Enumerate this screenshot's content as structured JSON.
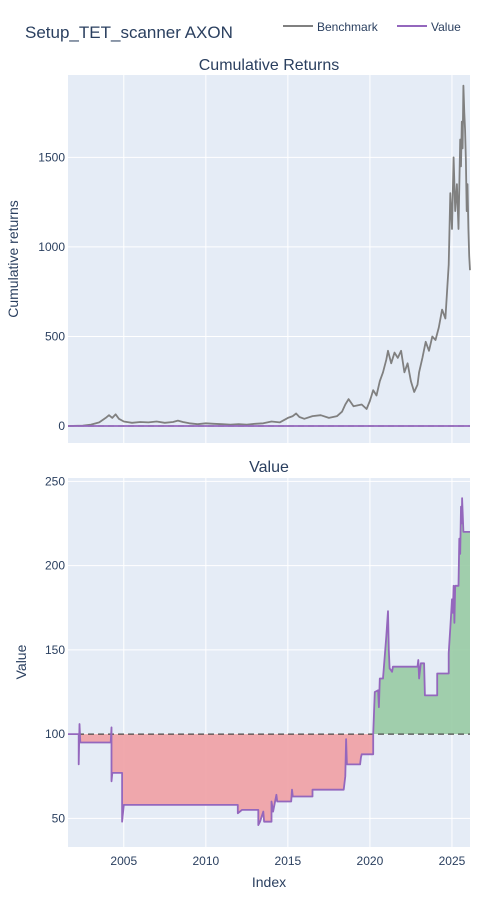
{
  "chart_data": [
    {
      "type": "line",
      "figure_title": "Setup_TET_scanner AXON",
      "title": "Cumulative Returns",
      "ylabel": "Cumulative returns",
      "xlabel": "",
      "x_range": [
        2001.6,
        2026.1
      ],
      "ylim": [
        -95,
        1960
      ],
      "yticks": [
        0,
        500,
        1000,
        1500
      ],
      "xticks": [
        2005,
        2010,
        2015,
        2020,
        2025
      ],
      "grid": true,
      "legend": {
        "position": "top-right",
        "entries": [
          "Benchmark",
          "Value"
        ]
      },
      "series": [
        {
          "name": "Benchmark",
          "color": "#808080",
          "points": [
            [
              2001.6,
              0
            ],
            [
              2002.5,
              2
            ],
            [
              2003.0,
              8
            ],
            [
              2003.5,
              20
            ],
            [
              2003.9,
              45
            ],
            [
              2004.1,
              60
            ],
            [
              2004.3,
              45
            ],
            [
              2004.5,
              65
            ],
            [
              2004.7,
              40
            ],
            [
              2005.0,
              25
            ],
            [
              2005.5,
              18
            ],
            [
              2006.0,
              22
            ],
            [
              2006.5,
              20
            ],
            [
              2007.0,
              25
            ],
            [
              2007.5,
              18
            ],
            [
              2008.0,
              22
            ],
            [
              2008.3,
              30
            ],
            [
              2008.6,
              22
            ],
            [
              2009.0,
              15
            ],
            [
              2009.5,
              10
            ],
            [
              2010.0,
              15
            ],
            [
              2010.5,
              12
            ],
            [
              2011.0,
              10
            ],
            [
              2011.5,
              8
            ],
            [
              2012.0,
              10
            ],
            [
              2012.5,
              8
            ],
            [
              2013.0,
              12
            ],
            [
              2013.5,
              15
            ],
            [
              2014.0,
              25
            ],
            [
              2014.5,
              20
            ],
            [
              2015.0,
              45
            ],
            [
              2015.3,
              55
            ],
            [
              2015.5,
              70
            ],
            [
              2015.7,
              50
            ],
            [
              2016.0,
              40
            ],
            [
              2016.5,
              55
            ],
            [
              2017.0,
              60
            ],
            [
              2017.5,
              45
            ],
            [
              2018.0,
              55
            ],
            [
              2018.3,
              80
            ],
            [
              2018.5,
              120
            ],
            [
              2018.7,
              150
            ],
            [
              2019.0,
              110
            ],
            [
              2019.5,
              120
            ],
            [
              2019.8,
              95
            ],
            [
              2020.0,
              140
            ],
            [
              2020.2,
              200
            ],
            [
              2020.4,
              170
            ],
            [
              2020.6,
              250
            ],
            [
              2020.8,
              300
            ],
            [
              2021.0,
              370
            ],
            [
              2021.1,
              420
            ],
            [
              2021.3,
              350
            ],
            [
              2021.5,
              410
            ],
            [
              2021.7,
              380
            ],
            [
              2021.9,
              420
            ],
            [
              2022.1,
              300
            ],
            [
              2022.3,
              350
            ],
            [
              2022.5,
              250
            ],
            [
              2022.7,
              190
            ],
            [
              2022.9,
              230
            ],
            [
              2023.0,
              300
            ],
            [
              2023.2,
              380
            ],
            [
              2023.4,
              470
            ],
            [
              2023.6,
              420
            ],
            [
              2023.8,
              500
            ],
            [
              2024.0,
              480
            ],
            [
              2024.2,
              550
            ],
            [
              2024.4,
              650
            ],
            [
              2024.6,
              600
            ],
            [
              2024.8,
              900
            ],
            [
              2024.9,
              1300
            ],
            [
              2025.0,
              1100
            ],
            [
              2025.1,
              1500
            ],
            [
              2025.2,
              1200
            ],
            [
              2025.3,
              1350
            ],
            [
              2025.4,
              1100
            ],
            [
              2025.5,
              1600
            ],
            [
              2025.55,
              1450
            ],
            [
              2025.6,
              1700
            ],
            [
              2025.65,
              1550
            ],
            [
              2025.7,
              1900
            ],
            [
              2025.75,
              1750
            ],
            [
              2025.8,
              1650
            ],
            [
              2025.85,
              1480
            ],
            [
              2025.9,
              1200
            ],
            [
              2025.95,
              1350
            ],
            [
              2026.0,
              1100
            ],
            [
              2026.05,
              950
            ],
            [
              2026.1,
              870
            ]
          ]
        },
        {
          "name": "Value",
          "color": "#9467bd",
          "points": [
            [
              2001.6,
              0
            ],
            [
              2026.1,
              0
            ]
          ]
        }
      ]
    },
    {
      "type": "line",
      "title": "Value",
      "ylabel": "Value",
      "xlabel": "Index",
      "x_range": [
        2001.6,
        2026.1
      ],
      "ylim": [
        33,
        252
      ],
      "yticks": [
        50,
        100,
        150,
        200,
        250
      ],
      "xticks": [
        2005,
        2010,
        2015,
        2020,
        2025
      ],
      "baseline": 100,
      "grid": true,
      "fill_colors": {
        "above": "#98cba4",
        "below": "#f0a0a4"
      },
      "series": [
        {
          "name": "Value",
          "color": "#9467bd",
          "points": [
            [
              2001.6,
              100
            ],
            [
              2002.25,
              100
            ],
            [
              2002.25,
              82
            ],
            [
              2002.3,
              106
            ],
            [
              2002.35,
              95
            ],
            [
              2004.2,
              95
            ],
            [
              2004.25,
              104
            ],
            [
              2004.25,
              72
            ],
            [
              2004.3,
              77
            ],
            [
              2004.9,
              77
            ],
            [
              2004.9,
              48
            ],
            [
              2005.0,
              58
            ],
            [
              2011.95,
              58
            ],
            [
              2011.95,
              53
            ],
            [
              2012.2,
              55
            ],
            [
              2013.2,
              55
            ],
            [
              2013.2,
              46
            ],
            [
              2013.3,
              48
            ],
            [
              2013.5,
              54
            ],
            [
              2013.55,
              48
            ],
            [
              2014.0,
              48
            ],
            [
              2014.0,
              60
            ],
            [
              2014.1,
              54
            ],
            [
              2014.3,
              64
            ],
            [
              2014.35,
              60
            ],
            [
              2015.2,
              60
            ],
            [
              2015.25,
              67
            ],
            [
              2015.3,
              63
            ],
            [
              2016.5,
              63
            ],
            [
              2016.5,
              67
            ],
            [
              2018.4,
              67
            ],
            [
              2018.5,
              75
            ],
            [
              2018.55,
              97
            ],
            [
              2018.6,
              82
            ],
            [
              2019.4,
              82
            ],
            [
              2019.45,
              86
            ],
            [
              2019.5,
              88
            ],
            [
              2020.2,
              88
            ],
            [
              2020.2,
              100
            ],
            [
              2020.3,
              125
            ],
            [
              2020.5,
              126
            ],
            [
              2020.55,
              116
            ],
            [
              2020.6,
              133
            ],
            [
              2020.8,
              133
            ],
            [
              2021.0,
              158
            ],
            [
              2021.1,
              173
            ],
            [
              2021.15,
              150
            ],
            [
              2021.2,
              139
            ],
            [
              2021.35,
              137
            ],
            [
              2021.4,
              140
            ],
            [
              2022.9,
              140
            ],
            [
              2022.95,
              144
            ],
            [
              2023.0,
              133
            ],
            [
              2023.1,
              142
            ],
            [
              2023.3,
              142
            ],
            [
              2023.35,
              123
            ],
            [
              2024.1,
              123
            ],
            [
              2024.1,
              136
            ],
            [
              2024.8,
              136
            ],
            [
              2024.8,
              148
            ],
            [
              2024.9,
              163
            ],
            [
              2025.0,
              180
            ],
            [
              2025.05,
              172
            ],
            [
              2025.1,
              188
            ],
            [
              2025.15,
              166
            ],
            [
              2025.2,
              188
            ],
            [
              2025.4,
              188
            ],
            [
              2025.45,
              216
            ],
            [
              2025.5,
              207
            ],
            [
              2025.55,
              235
            ],
            [
              2025.6,
              225
            ],
            [
              2025.62,
              240
            ],
            [
              2025.7,
              220
            ],
            [
              2026.1,
              220
            ]
          ]
        }
      ]
    }
  ]
}
